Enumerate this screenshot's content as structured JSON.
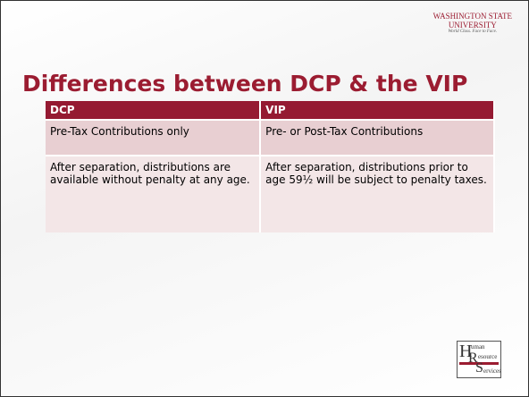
{
  "header": {
    "logo_line1": "WASHINGTON STATE",
    "logo_line2": "UNIVERSITY",
    "logo_tagline": "World Class. Face to Face.",
    "title": "Differences between DCP & the VIP"
  },
  "table": {
    "headers": [
      "DCP",
      "VIP"
    ],
    "rows": [
      [
        "Pre-Tax Contributions only",
        "Pre- or Post-Tax Contributions"
      ],
      [
        "After separation, distributions are available without penalty at any age.",
        "After separation, distributions prior to age  59½ will be subject to penalty taxes."
      ]
    ]
  },
  "footer": {
    "logo_h": "H",
    "logo_r": "R",
    "logo_s": "S",
    "logo_uman": "uman",
    "logo_esource": "esource",
    "logo_ervices": "ervices"
  }
}
